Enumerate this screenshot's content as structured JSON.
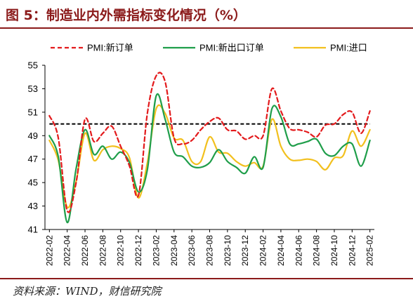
{
  "header": {
    "title": "图 5：制造业内外需指标变化情况（%）"
  },
  "footer": {
    "source": "资料来源：WIND，财信研究院"
  },
  "colors": {
    "new_orders": "#e31a1c",
    "new_export": "#1f9e4a",
    "import": "#f2c01e",
    "reference": "#000000",
    "title": "#8b1a1a"
  },
  "chart_data": {
    "type": "line",
    "title": "",
    "xlabel": "",
    "ylabel": "",
    "ylim": [
      41,
      55
    ],
    "yticks": [
      41,
      43,
      45,
      47,
      49,
      51,
      53,
      55
    ],
    "x_tick_labels": [
      "2022-02",
      "2022-04",
      "2022-06",
      "2022-08",
      "2022-10",
      "2022-12",
      "2023-02",
      "2023-04",
      "2023-06",
      "2023-08",
      "2023-10",
      "2023-12",
      "2024-02",
      "2024-04",
      "2024-06",
      "2024-08",
      "2024-10",
      "2024-12",
      "2025-02"
    ],
    "x": [
      "2022-02",
      "2022-03",
      "2022-04",
      "2022-05",
      "2022-06",
      "2022-07",
      "2022-08",
      "2022-09",
      "2022-10",
      "2022-11",
      "2022-12",
      "2023-01",
      "2023-02",
      "2023-03",
      "2023-04",
      "2023-05",
      "2023-06",
      "2023-07",
      "2023-08",
      "2023-09",
      "2023-10",
      "2023-11",
      "2023-12",
      "2024-01",
      "2024-02",
      "2024-03",
      "2024-04",
      "2024-05",
      "2024-06",
      "2024-07",
      "2024-08",
      "2024-09",
      "2024-10",
      "2024-11",
      "2024-12",
      "2025-01",
      "2025-02"
    ],
    "reference_line": 50,
    "legend_position": "top",
    "series": [
      {
        "name": "PMI:新订单",
        "style": "dashed",
        "values": [
          50.7,
          48.8,
          42.6,
          45.0,
          50.4,
          48.5,
          49.2,
          49.8,
          48.1,
          46.4,
          43.9,
          50.9,
          54.1,
          53.6,
          48.8,
          48.3,
          48.6,
          49.5,
          50.2,
          50.5,
          49.5,
          49.4,
          48.7,
          49.0,
          49.0,
          53.0,
          51.1,
          49.6,
          49.5,
          49.3,
          48.9,
          49.9,
          50.0,
          50.8,
          51.0,
          49.2,
          51.1
        ]
      },
      {
        "name": "PMI:新出口订单",
        "style": "solid",
        "values": [
          49.0,
          47.2,
          41.6,
          46.2,
          49.5,
          47.4,
          48.1,
          47.0,
          47.6,
          46.7,
          44.2,
          46.1,
          52.4,
          50.4,
          47.6,
          47.2,
          46.4,
          46.3,
          46.7,
          47.8,
          46.8,
          46.3,
          45.8,
          47.2,
          46.3,
          51.3,
          50.6,
          48.3,
          48.3,
          48.5,
          48.7,
          47.5,
          47.3,
          48.1,
          48.3,
          46.4,
          48.6
        ]
      },
      {
        "name": "PMI:进口",
        "style": "solid",
        "values": [
          48.6,
          46.9,
          42.9,
          45.1,
          49.2,
          46.9,
          47.8,
          48.1,
          47.9,
          47.1,
          43.7,
          46.7,
          51.3,
          50.9,
          48.8,
          48.6,
          46.8,
          46.8,
          48.9,
          47.6,
          47.5,
          46.8,
          46.4,
          46.7,
          46.4,
          50.4,
          48.1,
          47.0,
          46.9,
          47.0,
          46.8,
          46.1,
          47.1,
          47.3,
          49.4,
          48.1,
          49.5
        ]
      }
    ]
  }
}
